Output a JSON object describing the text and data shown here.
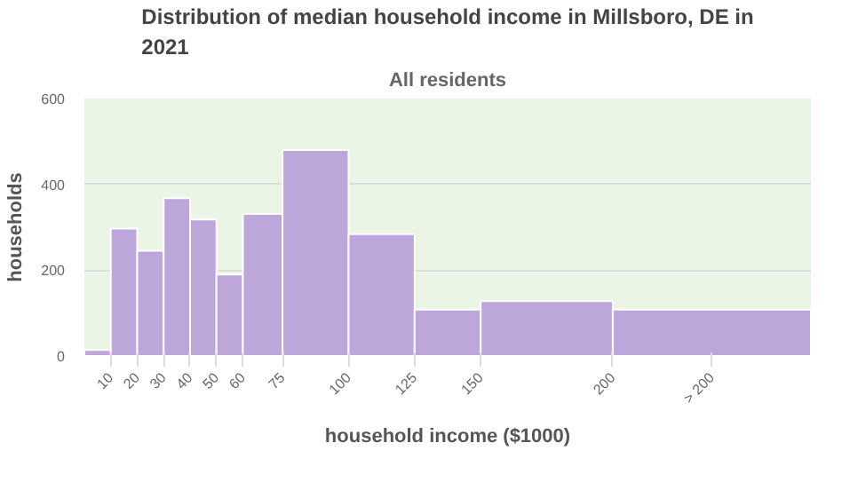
{
  "chart_data": {
    "type": "histogram",
    "title": "Distribution of median household income in Millsboro, DE in 2021",
    "subtitle": "All residents",
    "xlabel": "household income ($1000)",
    "ylabel": "households",
    "bins": [
      0,
      10,
      20,
      30,
      40,
      50,
      60,
      75,
      100,
      125,
      150,
      200,
      275
    ],
    "values": [
      14,
      297,
      245,
      368,
      318,
      190,
      331,
      480,
      284,
      108,
      128,
      108
    ],
    "color": "#bda6d9",
    "xlim": [
      0,
      275
    ],
    "xticks": [
      10,
      20,
      30,
      40,
      50,
      60,
      75,
      100,
      125,
      150,
      200,
      {
        "value": 237.5,
        "label": "> 200"
      }
    ],
    "ylim": [
      0,
      600
    ],
    "yticks": [
      0,
      200,
      400,
      600
    ],
    "grid": "y"
  }
}
